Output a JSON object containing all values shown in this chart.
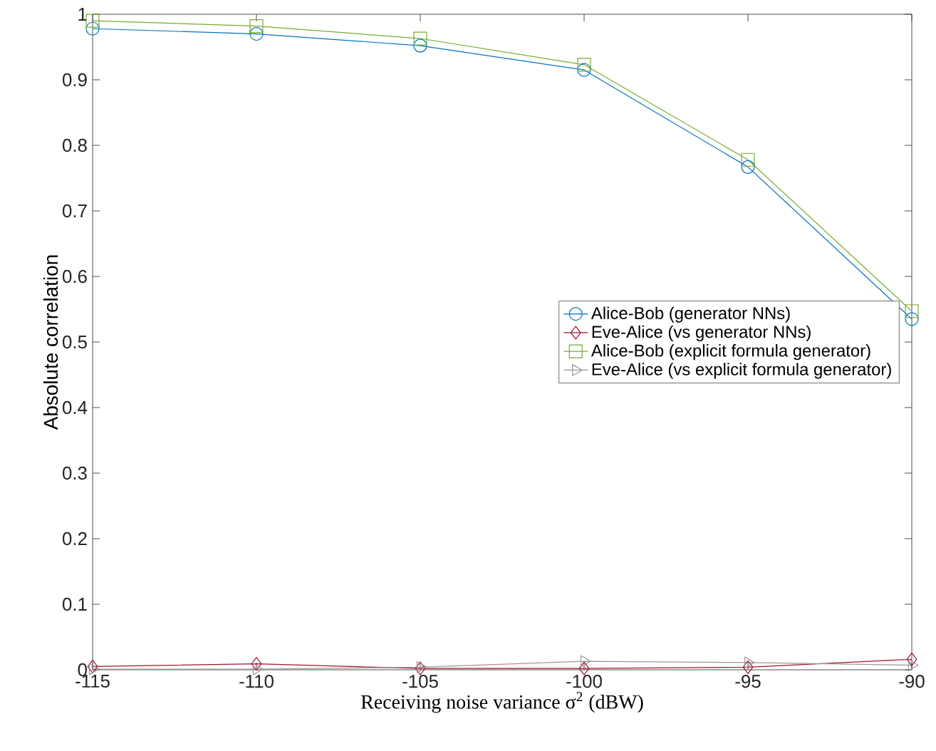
{
  "chart_data": {
    "type": "line",
    "xlabel": "Receiving noise variance σ$^{2}$ (dBW)",
    "ylabel": "Absolute correlation",
    "x": [
      -115,
      -110,
      -105,
      -100,
      -95,
      -90
    ],
    "series": [
      {
        "name": "Alice-Bob (generator NNs)",
        "color": "#0072bd",
        "marker": "circle",
        "values": [
          0.978,
          0.97,
          0.952,
          0.915,
          0.767,
          0.535
        ]
      },
      {
        "name": "Eve-Alice (vs generator NNs)",
        "color": "#a2142f",
        "marker": "diamond",
        "values": [
          0.005,
          0.009,
          0.002,
          0.002,
          0.004,
          0.016
        ]
      },
      {
        "name": "Alice-Bob (explicit formula generator)",
        "color": "#77ac30",
        "marker": "square",
        "values": [
          0.99,
          0.982,
          0.963,
          0.923,
          0.778,
          0.547
        ]
      },
      {
        "name": "Eve-Alice (vs explicit formula generator)",
        "color": "#999999",
        "marker": "triangle",
        "values": [
          0.001,
          0.001,
          0.004,
          0.013,
          0.011,
          0.007
        ]
      }
    ],
    "xlim": [
      -115,
      -90
    ],
    "xticks": [
      -115,
      -110,
      -105,
      -100,
      -95,
      -90
    ],
    "ylim": [
      0,
      1
    ],
    "yticks": [
      0,
      0.1,
      0.2,
      0.3,
      0.4,
      0.5,
      0.6,
      0.7,
      0.8,
      0.9,
      1
    ],
    "grid": false,
    "legend": "right",
    "line_style": "solid"
  }
}
